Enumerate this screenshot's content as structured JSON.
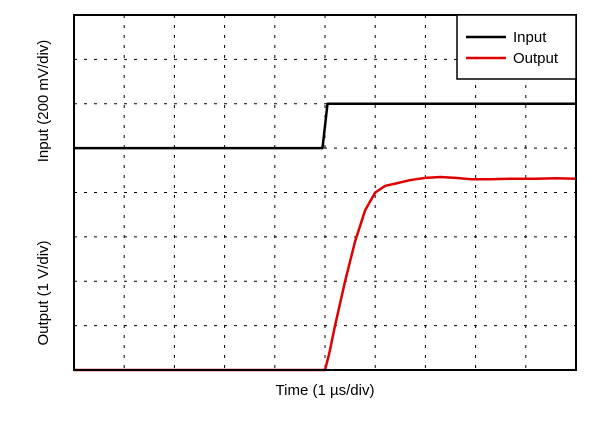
{
  "chart_data": {
    "type": "line",
    "xlabel": "Time (1 µs/div)",
    "ylabel_top": "Input (200 mV/div)",
    "ylabel_bottom": "Output (1 V/div)",
    "xlim": [
      0,
      10
    ],
    "ylim": [
      0,
      8
    ],
    "grid": true,
    "grid_style": "dashed",
    "divisions": {
      "x": 10,
      "y": 8
    },
    "legend": {
      "position": "top-right",
      "entries": [
        "Input",
        "Output"
      ]
    },
    "series": [
      {
        "name": "Input",
        "color": "#000000",
        "x": [
          0,
          4.95,
          5.05,
          10
        ],
        "y": [
          5.0,
          5.0,
          6.0,
          6.0
        ]
      },
      {
        "name": "Output",
        "color": "#e00000",
        "x": [
          0,
          5.0,
          5.08,
          5.2,
          5.4,
          5.6,
          5.8,
          6.0,
          6.2,
          6.4,
          6.7,
          7.0,
          7.3,
          7.6,
          7.9,
          8.3,
          8.7,
          9.2,
          9.6,
          10
        ],
        "y": [
          0.0,
          0.0,
          0.35,
          1.0,
          2.0,
          2.9,
          3.6,
          4.0,
          4.15,
          4.2,
          4.28,
          4.33,
          4.35,
          4.33,
          4.3,
          4.3,
          4.31,
          4.31,
          4.32,
          4.31
        ]
      }
    ]
  }
}
